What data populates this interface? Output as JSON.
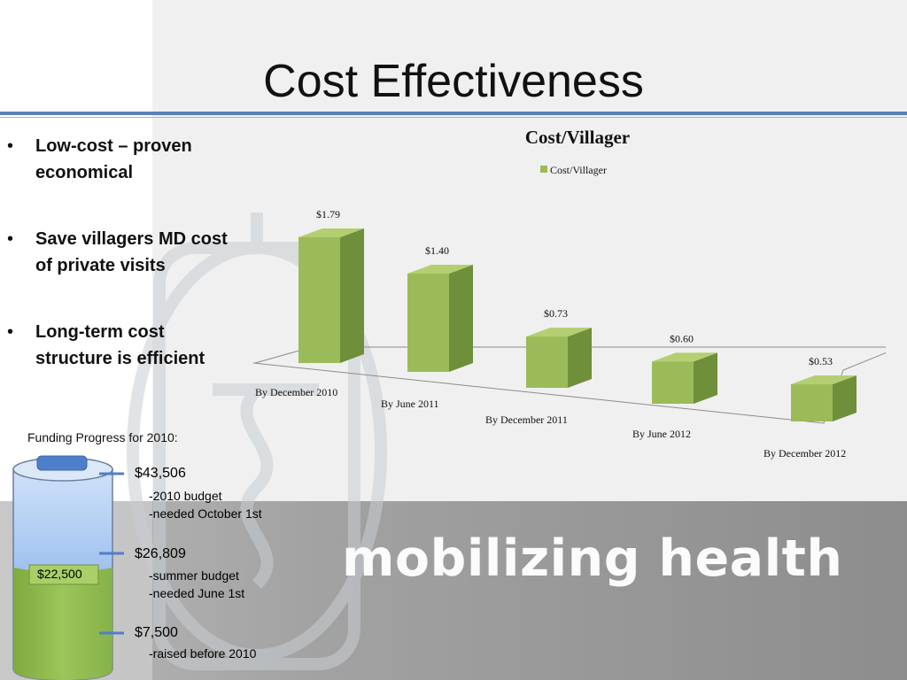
{
  "slide": {
    "title": "Cost Effectiveness",
    "bullets": [
      {
        "line1": "Low-cost – proven",
        "line2": "economical"
      },
      {
        "line1": "Save villagers MD cost",
        "line2": "of private visits"
      },
      {
        "line1": "Long-term cost",
        "line2": "structure is efficient"
      }
    ],
    "bullet_marker": "•",
    "brand_text": "mobilizing health"
  },
  "funding": {
    "label": "Funding Progress for 2010:",
    "current_amount": "$22,500",
    "fill_fraction": 0.517,
    "markers": [
      {
        "amount": "$43,506",
        "notes": [
          "-2010 budget",
          "-needed October 1st"
        ]
      },
      {
        "amount": "$26,809",
        "notes": [
          "-summer budget",
          "-needed June 1st"
        ]
      },
      {
        "amount": "$7,500",
        "notes": [
          "-raised before 2010"
        ]
      }
    ]
  },
  "colors": {
    "bar_face": "#9bbb59",
    "bar_side": "#6f8f3a",
    "bar_top": "#b3cf72",
    "rule": "#5b7fb6",
    "tank_blue": "#6ca0e8",
    "tank_green": "#8dbb4a"
  },
  "chart_data": {
    "type": "bar",
    "title": "Cost/Villager",
    "legend": [
      "Cost/Villager"
    ],
    "legend_position": "top",
    "categories": [
      "By December 2010",
      "By June 2011",
      "By December 2011",
      "By June 2012",
      "By December 2012"
    ],
    "series": [
      {
        "name": "Cost/Villager",
        "values": [
          1.79,
          1.4,
          0.73,
          0.6,
          0.53
        ]
      }
    ],
    "data_labels": [
      "$1.79",
      "$1.40",
      "$0.73",
      "$0.60",
      "$0.53"
    ],
    "style": "3d-column",
    "grid": false
  }
}
